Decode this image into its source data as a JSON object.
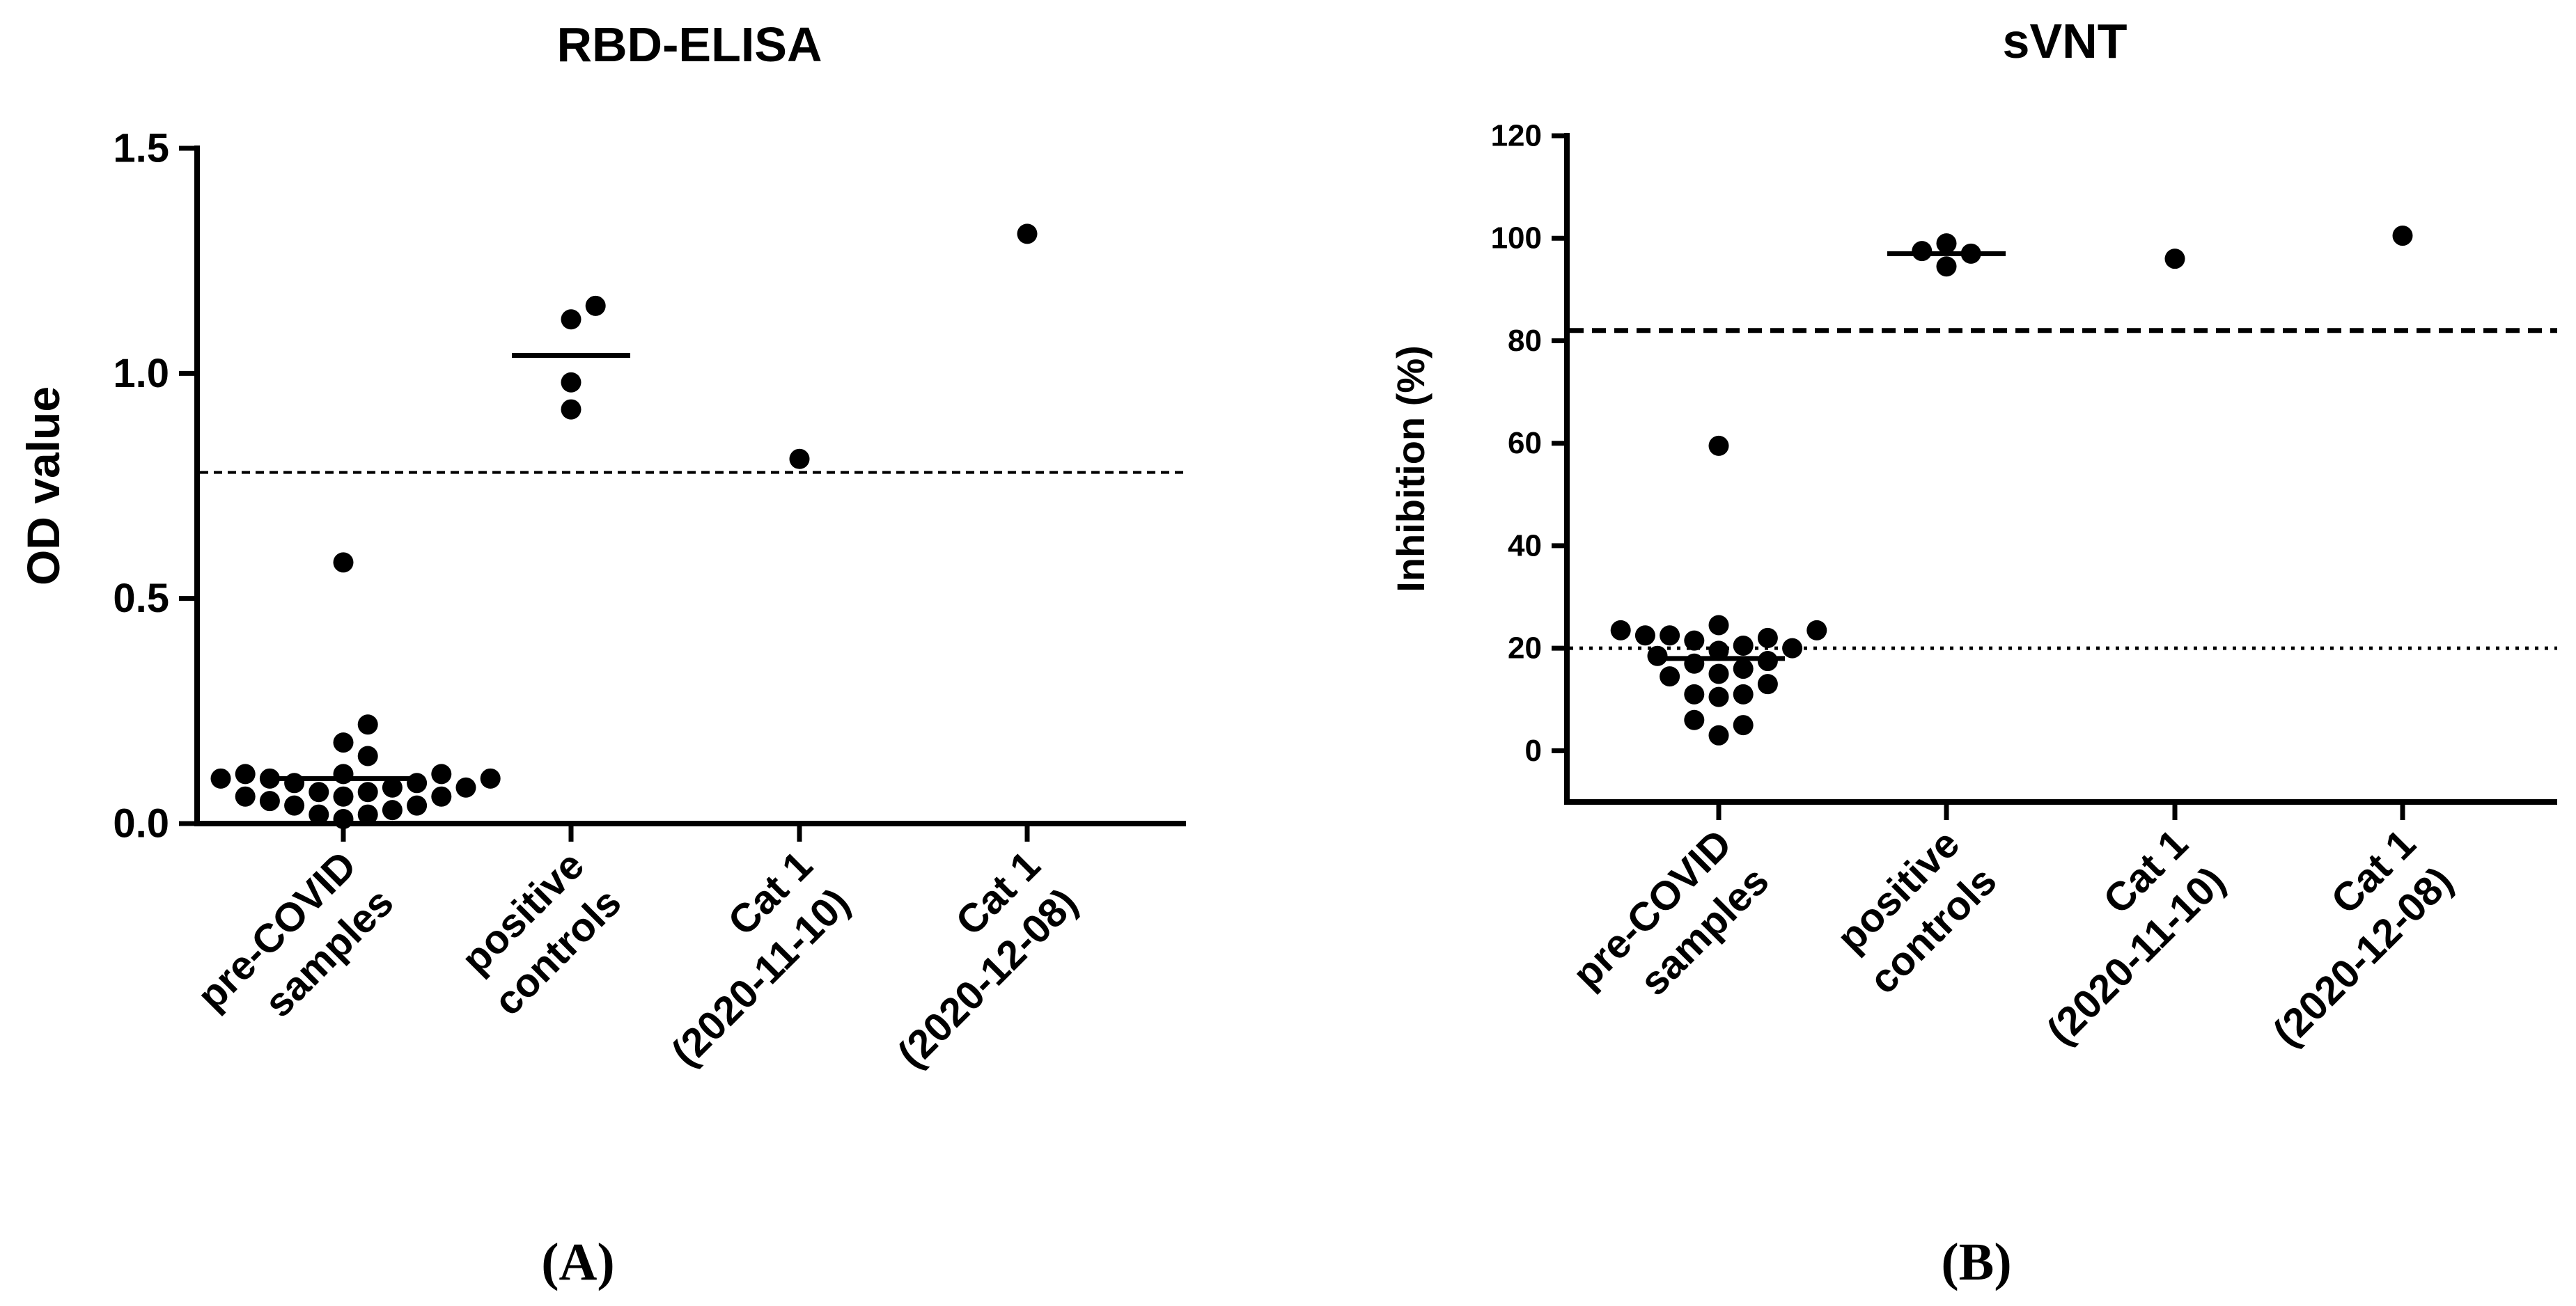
{
  "chart_data": [
    {
      "type": "scatter",
      "panel_label": "(A)",
      "title": "RBD-ELISA",
      "xlabel": "",
      "ylabel": "OD value",
      "ylim": [
        0,
        1.5
      ],
      "yticks": [
        "0.0",
        "0.5",
        "1.0",
        "1.5"
      ],
      "categories": [
        [
          "pre-COVID",
          "samples"
        ],
        [
          "positive",
          "controls"
        ],
        [
          "Cat 1",
          "(2020-11-10)"
        ],
        [
          "Cat 1",
          "(2020-12-08)"
        ]
      ],
      "groups": [
        {
          "name": "pre-COVID samples",
          "values": [
            0.58,
            0.22,
            0.18,
            0.15,
            0.11,
            0.11,
            0.11,
            0.1,
            0.1,
            0.1,
            0.09,
            0.09,
            0.08,
            0.08,
            0.07,
            0.07,
            0.06,
            0.06,
            0.06,
            0.05,
            0.04,
            0.04,
            0.03,
            0.02,
            0.02,
            0.01
          ],
          "mean": 0.1
        },
        {
          "name": "positive controls",
          "values": [
            1.15,
            1.12,
            0.98,
            0.92
          ],
          "mean": 1.04
        },
        {
          "name": "Cat 1 (2020-11-10)",
          "values": [
            0.81
          ]
        },
        {
          "name": "Cat 1 (2020-12-08)",
          "values": [
            1.31
          ]
        }
      ],
      "reference_lines": [
        {
          "y": 0.78,
          "style": "dashed"
        }
      ]
    },
    {
      "type": "scatter",
      "panel_label": "(B)",
      "title": "sVNT",
      "xlabel": "",
      "ylabel": "Inhibition (%)",
      "ylim": [
        -10,
        120
      ],
      "yticks": [
        "0",
        "20",
        "40",
        "60",
        "80",
        "100",
        "120"
      ],
      "categories": [
        [
          "pre-COVID",
          "samples"
        ],
        [
          "positive",
          "controls"
        ],
        [
          "Cat 1",
          "(2020-11-10)"
        ],
        [
          "Cat 1",
          "(2020-12-08)"
        ]
      ],
      "groups": [
        {
          "name": "pre-COVID samples",
          "values": [
            59.5,
            24.5,
            23.5,
            23.5,
            22.5,
            22.5,
            22,
            21.5,
            20.5,
            20,
            19.5,
            18.5,
            17.5,
            17,
            16,
            15,
            14.5,
            13,
            11,
            11,
            10.5,
            6,
            5,
            3
          ],
          "mean": 18
        },
        {
          "name": "positive controls",
          "values": [
            99,
            97.5,
            97,
            94.5
          ],
          "mean": 97
        },
        {
          "name": "Cat 1 (2020-11-10)",
          "values": [
            96
          ]
        },
        {
          "name": "Cat 1 (2020-12-08)",
          "values": [
            100.5
          ]
        }
      ],
      "reference_lines": [
        {
          "y": 82,
          "style": "dashed"
        },
        {
          "y": 20,
          "style": "dotted"
        }
      ]
    }
  ]
}
